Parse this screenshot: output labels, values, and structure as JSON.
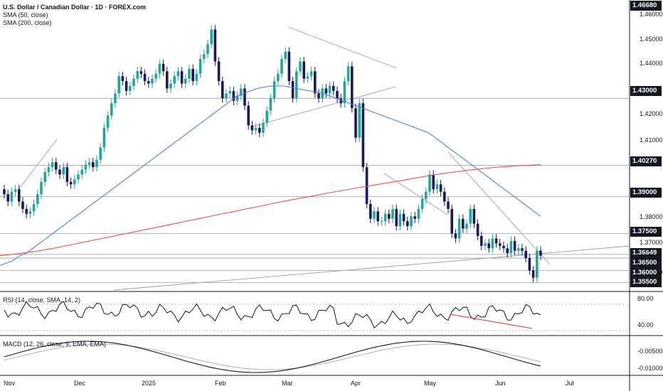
{
  "header": {
    "symbol_title": "U.S. Dollar / Canadian Dollar · 1D · FOREX.com",
    "sma50_label": "SMA (50, close)",
    "sma200_label": "SMA (200, close)"
  },
  "rsi_panel": {
    "label": "RSI (14, close, SMA, 14, 2)",
    "axis": [
      "80.00",
      "40.00"
    ]
  },
  "macd_panel": {
    "label": "MACD (12, 26, close, 9, EMA, EMA)",
    "axis": [
      "-0.00500",
      "-0.01000"
    ]
  },
  "price_axis": {
    "plain": [
      "1.46000",
      "1.45000",
      "1.44000",
      "1.42000",
      "1.41000",
      "1.38000",
      "1.37000",
      "1.36000"
    ],
    "tags": [
      {
        "text": "1.46680",
        "style": "dark"
      },
      {
        "text": "1.43000",
        "style": "dark"
      },
      {
        "text": "1.40270",
        "style": "dark"
      },
      {
        "text": "1.39000",
        "style": "dark"
      },
      {
        "text": "1.37500",
        "style": "dark"
      },
      {
        "text": "1.36649",
        "style": "dark"
      },
      {
        "text": "1.36500",
        "style": "dark"
      },
      {
        "text": "1.36000",
        "style": "dark"
      },
      {
        "text": "1.35500",
        "style": "dark"
      }
    ]
  },
  "time_axis": [
    "Nov",
    "Dec",
    "2025",
    "Feb",
    "Mar",
    "Apr",
    "May",
    "Jun",
    "Jul"
  ],
  "colors": {
    "bull": "#26a69a",
    "bear": "#1a1a5e",
    "sma50": "#4e7fe6",
    "sma200": "#e8525b",
    "trendline": "#9e9e9e",
    "hline": "#9e9e9e",
    "rsi_line": "#131722",
    "rsi_trend": "#e8525b",
    "macd_line": "#131722",
    "signal_line": "#b0b0b0"
  },
  "chart_data": {
    "type": "candlestick",
    "ylim": [
      1.352,
      1.47
    ],
    "horizontal_levels": [
      1.43,
      1.4027,
      1.39,
      1.375,
      1.36649,
      1.365,
      1.36,
      1.355
    ],
    "closes": [
      1.391,
      1.388,
      1.392,
      1.393,
      1.388,
      1.385,
      1.383,
      1.384,
      1.387,
      1.391,
      1.396,
      1.4,
      1.402,
      1.404,
      1.401,
      1.399,
      1.402,
      1.396,
      1.395,
      1.397,
      1.399,
      1.401,
      1.403,
      1.404,
      1.402,
      1.405,
      1.41,
      1.418,
      1.423,
      1.428,
      1.432,
      1.439,
      1.437,
      1.433,
      1.435,
      1.438,
      1.441,
      1.44,
      1.437,
      1.436,
      1.438,
      1.44,
      1.444,
      1.441,
      1.434,
      1.436,
      1.439,
      1.441,
      1.436,
      1.438,
      1.442,
      1.437,
      1.44,
      1.446,
      1.448,
      1.452,
      1.458,
      1.445,
      1.437,
      1.43,
      1.432,
      1.433,
      1.429,
      1.431,
      1.434,
      1.427,
      1.419,
      1.417,
      1.418,
      1.416,
      1.42,
      1.425,
      1.43,
      1.437,
      1.44,
      1.446,
      1.449,
      1.437,
      1.43,
      1.441,
      1.445,
      1.438,
      1.439,
      1.441,
      1.432,
      1.43,
      1.434,
      1.432,
      1.435,
      1.433,
      1.43,
      1.428,
      1.437,
      1.443,
      1.426,
      1.414,
      1.428,
      1.402,
      1.387,
      1.381,
      1.384,
      1.38,
      1.38,
      1.383,
      1.381,
      1.385,
      1.378,
      1.383,
      1.38,
      1.378,
      1.382,
      1.381,
      1.385,
      1.389,
      1.392,
      1.399,
      1.393,
      1.395,
      1.392,
      1.388,
      1.385,
      1.375,
      1.373,
      1.381,
      1.377,
      1.379,
      1.385,
      1.379,
      1.374,
      1.37,
      1.371,
      1.369,
      1.373,
      1.371,
      1.37,
      1.369,
      1.367,
      1.372,
      1.368,
      1.369,
      1.368,
      1.365,
      1.36,
      1.357,
      1.368,
      1.366
    ],
    "sma50": [
      1.362,
      1.363,
      1.364,
      1.366,
      1.367,
      1.369,
      1.371,
      1.373,
      1.375,
      1.377,
      1.379,
      1.381,
      1.383,
      1.385,
      1.387,
      1.389,
      1.391,
      1.393,
      1.395,
      1.397,
      1.399,
      1.401,
      1.403,
      1.405,
      1.407,
      1.409,
      1.411,
      1.413,
      1.415,
      1.417,
      1.419,
      1.421,
      1.423,
      1.425,
      1.427,
      1.429,
      1.431,
      1.432,
      1.433,
      1.434,
      1.4345,
      1.435,
      1.435,
      1.435,
      1.4345,
      1.434,
      1.4335,
      1.433,
      1.4325,
      1.432,
      1.431,
      1.43,
      1.429,
      1.428,
      1.427,
      1.426,
      1.425,
      1.424,
      1.423,
      1.422,
      1.421,
      1.42,
      1.419,
      1.418,
      1.417,
      1.416,
      1.414,
      1.412,
      1.41,
      1.408,
      1.406,
      1.404,
      1.402,
      1.4,
      1.398,
      1.396,
      1.394,
      1.392,
      1.39,
      1.388,
      1.386,
      1.384,
      1.382
    ],
    "sma200": [
      1.366,
      1.3668,
      1.3678,
      1.369,
      1.3705,
      1.372,
      1.3735,
      1.375,
      1.3765,
      1.378,
      1.3795,
      1.381,
      1.3825,
      1.384,
      1.3855,
      1.387,
      1.3885,
      1.3898,
      1.3912,
      1.3925,
      1.3938,
      1.395,
      1.3962,
      1.3975,
      1.3988,
      1.3998,
      1.4008,
      1.4016,
      1.4022,
      1.4027,
      1.403
    ]
  }
}
